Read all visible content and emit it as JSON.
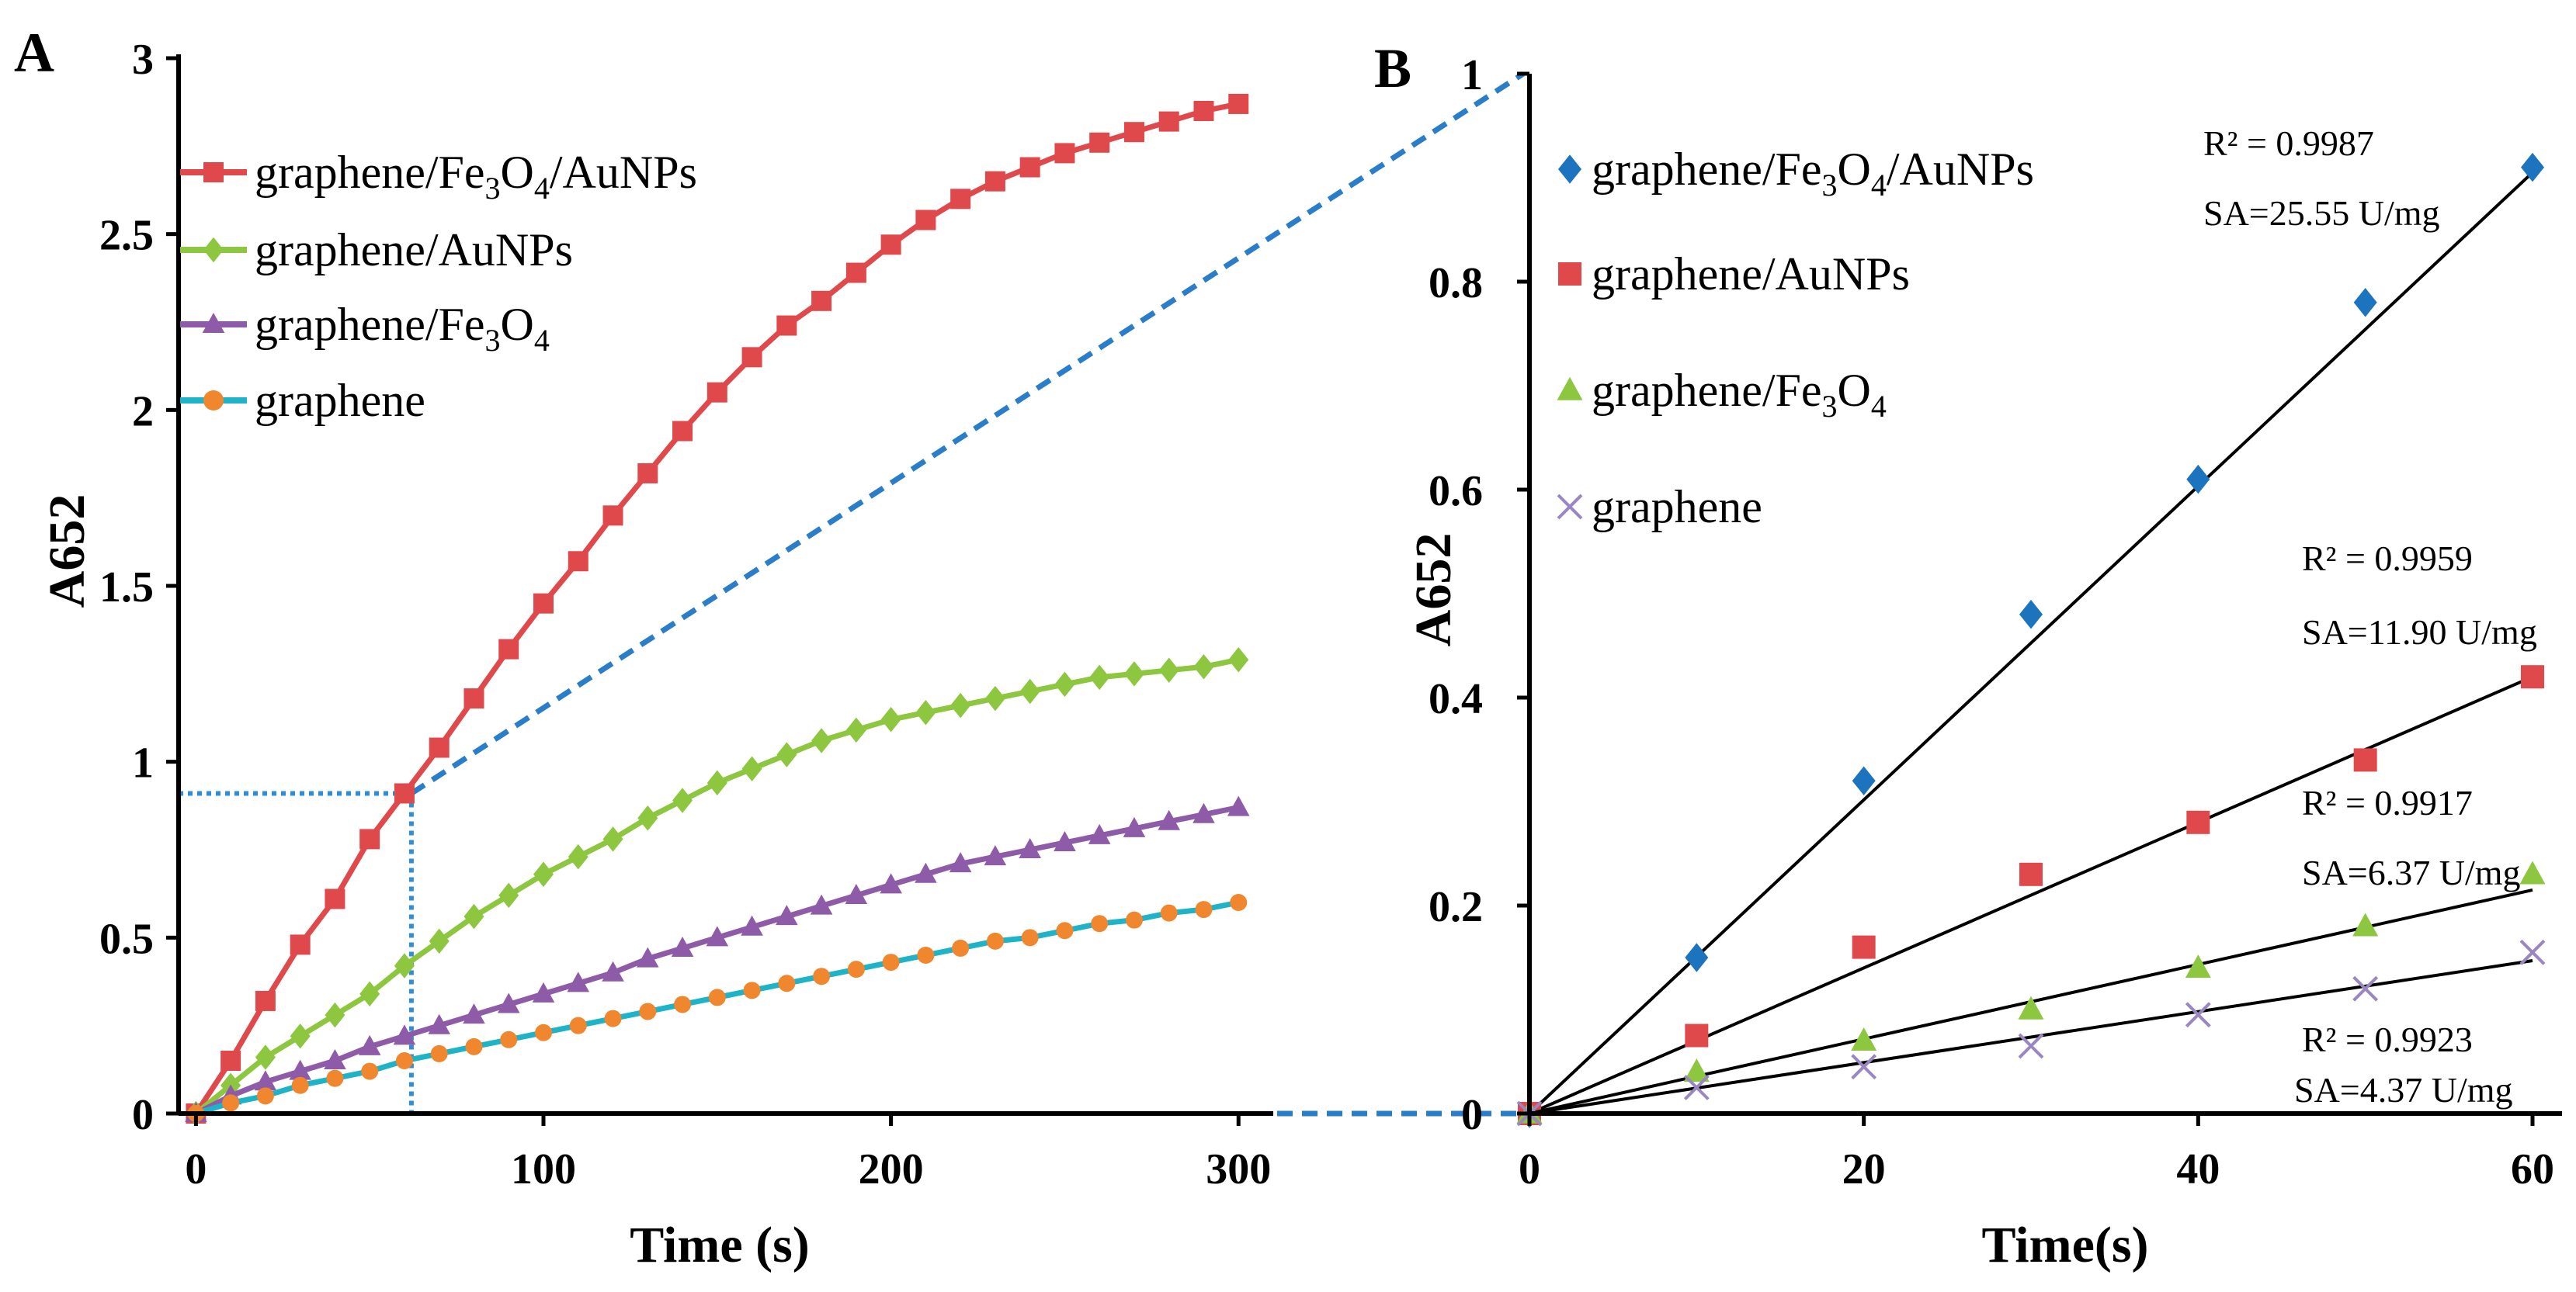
{
  "figure": {
    "colors": {
      "red": "#E0494B",
      "green": "#8DC63F",
      "purple": "#8E5BA8",
      "teal": "#1FB3C8",
      "orange_marker": "#F0862E",
      "blue_marker": "#1C73BE",
      "dash_blue": "#2A7DC9",
      "dot_blue": "#2E8FD8",
      "x_marker": "#9A86C0",
      "fit_line": "#000000"
    }
  },
  "chart_data": [
    {
      "panel": "A",
      "type": "line",
      "xlabel": "Time (s)",
      "ylabel": "A652",
      "xlim": [
        -5,
        310
      ],
      "ylim": [
        0,
        3
      ],
      "xticks": [
        0,
        100,
        200,
        300
      ],
      "xtick_labels": [
        "0",
        "100",
        "200",
        "300"
      ],
      "yticks": [
        0,
        0.5,
        1,
        1.5,
        2,
        2.5,
        3
      ],
      "ytick_labels": [
        "0",
        "0.5",
        "1",
        "1.5",
        "2",
        "2.5",
        "3"
      ],
      "legend_position": "top-left",
      "x": [
        0,
        10,
        20,
        30,
        40,
        50,
        60,
        70,
        80,
        90,
        100,
        110,
        120,
        130,
        140,
        150,
        160,
        170,
        180,
        190,
        200,
        210,
        220,
        230,
        240,
        250,
        260,
        270,
        280,
        290,
        300
      ],
      "series": [
        {
          "name": "graphene/Fe3O4/AuNPs",
          "label_main": "graphene/Fe",
          "label_sub": "3",
          "label_mid": "O",
          "label_sub2": "4",
          "label_tail": "/AuNPs",
          "marker": "square",
          "color": "#E0494B",
          "values": [
            0.0,
            0.15,
            0.32,
            0.48,
            0.61,
            0.78,
            0.91,
            1.04,
            1.18,
            1.32,
            1.45,
            1.57,
            1.7,
            1.82,
            1.94,
            2.05,
            2.15,
            2.24,
            2.31,
            2.39,
            2.47,
            2.54,
            2.6,
            2.65,
            2.69,
            2.73,
            2.76,
            2.79,
            2.82,
            2.85,
            2.87
          ]
        },
        {
          "name": "graphene/AuNPs",
          "label_main": "graphene/AuNPs",
          "marker": "diamond",
          "color": "#8DC63F",
          "values": [
            0.0,
            0.08,
            0.16,
            0.22,
            0.28,
            0.34,
            0.42,
            0.49,
            0.56,
            0.62,
            0.68,
            0.73,
            0.78,
            0.84,
            0.89,
            0.94,
            0.98,
            1.02,
            1.06,
            1.09,
            1.12,
            1.14,
            1.16,
            1.18,
            1.2,
            1.22,
            1.24,
            1.25,
            1.26,
            1.27,
            1.29
          ]
        },
        {
          "name": "graphene/Fe3O4",
          "label_main": "graphene/Fe",
          "label_sub": "3",
          "label_mid": "O",
          "label_sub2": "4",
          "label_tail": "",
          "marker": "triangle",
          "color": "#8E5BA8",
          "values": [
            0.0,
            0.05,
            0.09,
            0.12,
            0.15,
            0.19,
            0.22,
            0.25,
            0.28,
            0.31,
            0.34,
            0.37,
            0.4,
            0.44,
            0.47,
            0.5,
            0.53,
            0.56,
            0.59,
            0.62,
            0.65,
            0.68,
            0.71,
            0.73,
            0.75,
            0.77,
            0.79,
            0.81,
            0.83,
            0.85,
            0.87
          ]
        },
        {
          "name": "graphene",
          "label_main": "graphene",
          "marker": "circle",
          "color": "#1FB3C8",
          "marker_color": "#F0862E",
          "values": [
            0.0,
            0.03,
            0.05,
            0.08,
            0.1,
            0.12,
            0.15,
            0.17,
            0.19,
            0.21,
            0.23,
            0.25,
            0.27,
            0.29,
            0.31,
            0.33,
            0.35,
            0.37,
            0.39,
            0.41,
            0.43,
            0.45,
            0.47,
            0.49,
            0.5,
            0.52,
            0.54,
            0.55,
            0.57,
            0.58,
            0.6
          ]
        }
      ],
      "guide": {
        "x": 62,
        "y": 0.91
      }
    },
    {
      "panel": "B",
      "type": "scatter",
      "xlabel": "Time(s)",
      "ylabel": "A652",
      "xlim": [
        0,
        60
      ],
      "ylim": [
        0,
        1
      ],
      "xticks": [
        0,
        20,
        40,
        60
      ],
      "xtick_labels": [
        "0",
        "20",
        "40",
        "60"
      ],
      "yticks": [
        0,
        0.2,
        0.4,
        0.6,
        0.8,
        1
      ],
      "ytick_labels": [
        "0",
        "0.2",
        "0.4",
        "0.6",
        "0.8",
        "1"
      ],
      "legend_position": "top-left",
      "x": [
        0,
        10,
        20,
        30,
        40,
        50,
        60
      ],
      "series": [
        {
          "name": "graphene/Fe3O4/AuNPs",
          "label_main": "graphene/Fe",
          "label_sub": "3",
          "label_mid": "O",
          "label_sub2": "4",
          "label_tail": "/AuNPs",
          "marker": "diamond",
          "color": "#1C73BE",
          "values": [
            0.0,
            0.15,
            0.32,
            0.48,
            0.61,
            0.78,
            0.91
          ],
          "fit_end": 0.905,
          "r2": "R² = 0.9987",
          "sa": "SA=25.55 U/mg"
        },
        {
          "name": "graphene/AuNPs",
          "label_main": "graphene/AuNPs",
          "marker": "square",
          "color": "#E0494B",
          "values": [
            0.0,
            0.075,
            0.16,
            0.23,
            0.28,
            0.34,
            0.42
          ],
          "fit_end": 0.42,
          "r2": "R² = 0.9959",
          "sa": "SA=11.90 U/mg"
        },
        {
          "name": "graphene/Fe3O4",
          "label_main": "graphene/Fe",
          "label_sub": "3",
          "label_mid": "O",
          "label_sub2": "4",
          "label_tail": "",
          "marker": "triangle",
          "color": "#8DC63F",
          "values": [
            0.0,
            0.04,
            0.07,
            0.1,
            0.14,
            0.18,
            0.23
          ],
          "fit_end": 0.215,
          "r2": "R² = 0.9917",
          "sa": "SA=6.37 U/mg"
        },
        {
          "name": "graphene",
          "label_main": "graphene",
          "marker": "x",
          "color": "#9A86C0",
          "values": [
            0.0,
            0.025,
            0.045,
            0.065,
            0.095,
            0.12,
            0.155
          ],
          "fit_end": 0.147,
          "r2": "R² = 0.9923",
          "sa": "SA=4.37 U/mg"
        }
      ]
    }
  ]
}
